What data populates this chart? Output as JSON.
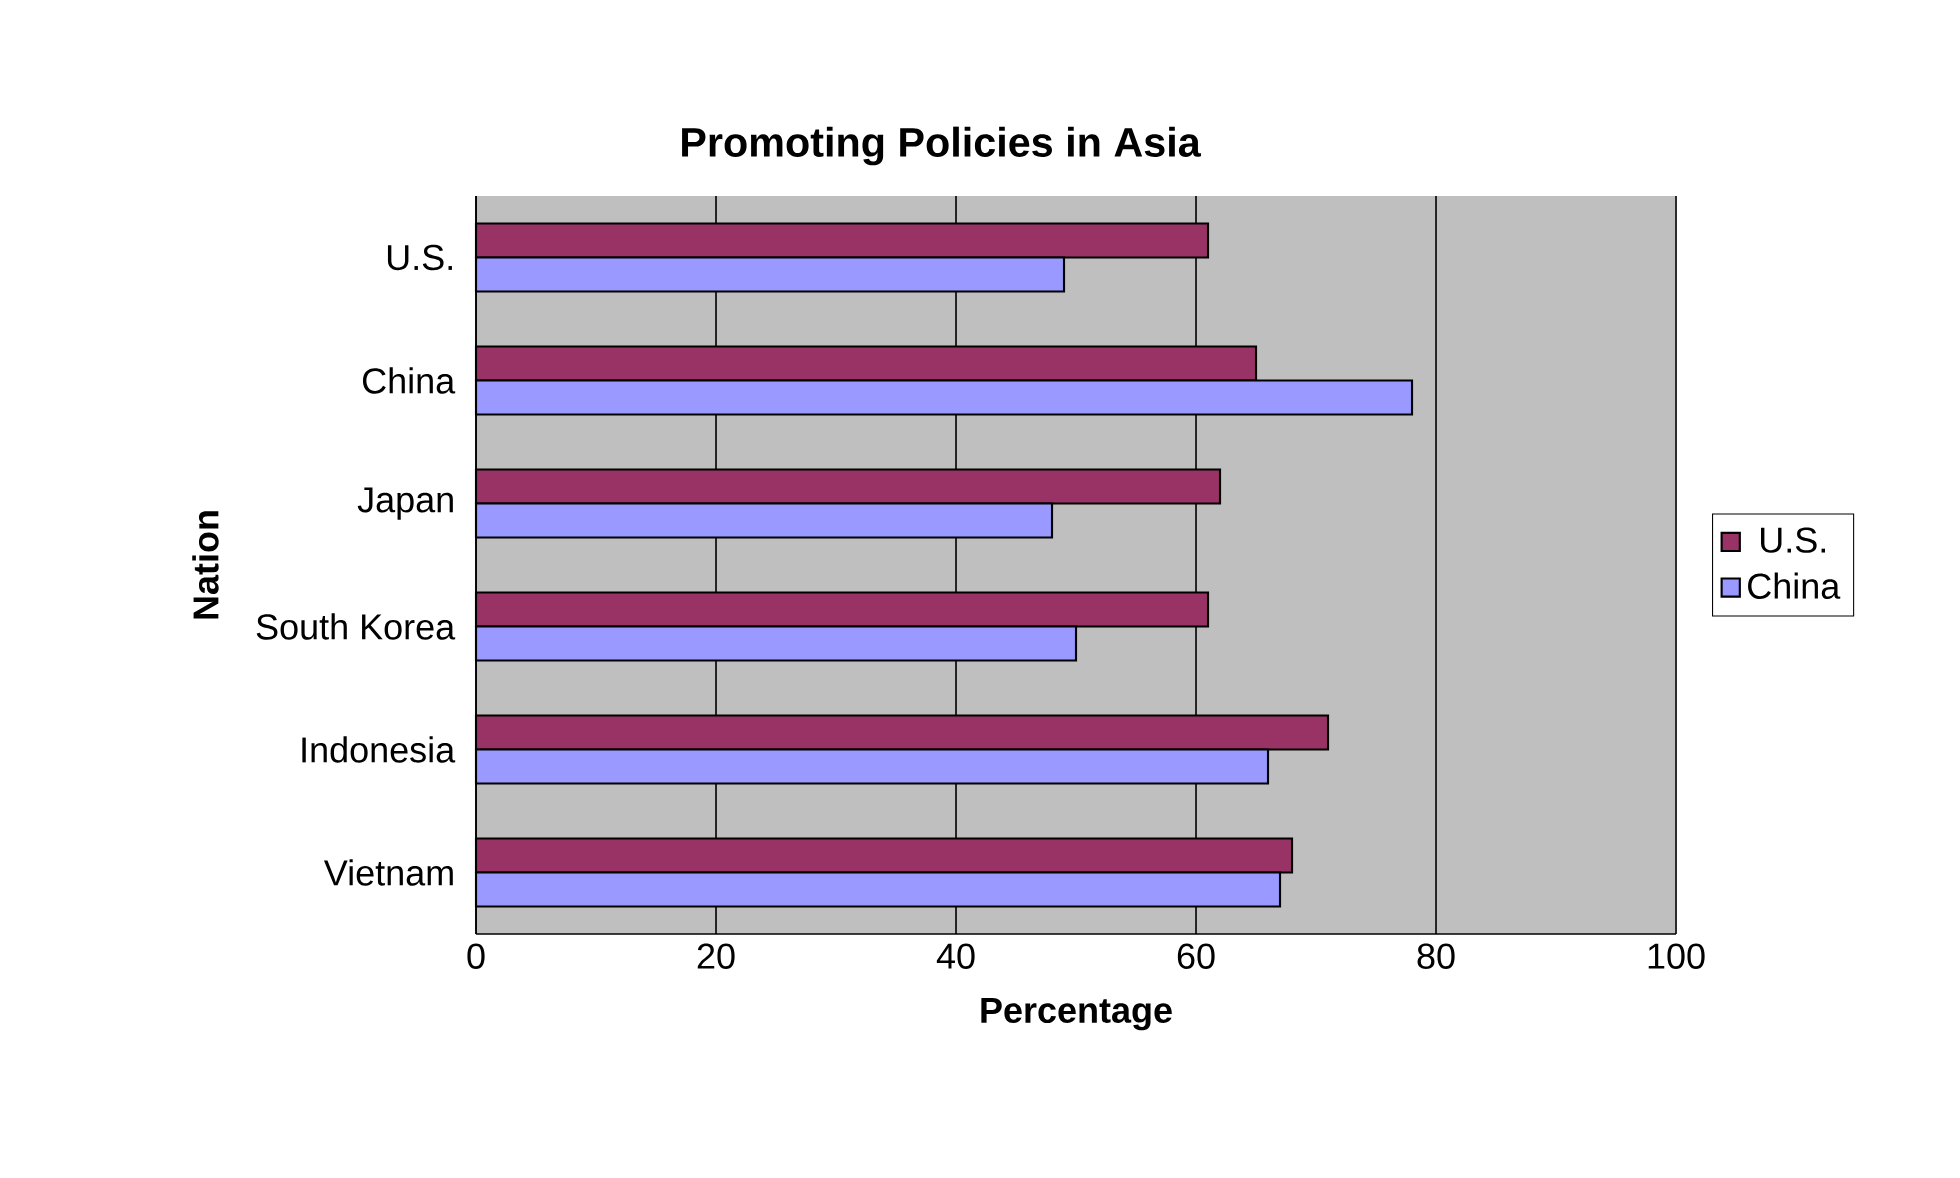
{
  "chart_data": {
    "type": "bar",
    "orientation": "horizontal",
    "title": "Promoting Policies in Asia",
    "xlabel": "Percentage",
    "ylabel": "Nation",
    "categories": [
      "U.S.",
      "China",
      "Japan",
      "South Korea",
      "Indonesia",
      "Vietnam"
    ],
    "series": [
      {
        "name": "U.S.",
        "color": "#993366",
        "values": [
          61,
          65,
          62,
          61,
          71,
          68
        ]
      },
      {
        "name": "China",
        "color": "#9999ff",
        "values": [
          49,
          78,
          48,
          50,
          66,
          67
        ]
      }
    ],
    "xlim": [
      0,
      100
    ],
    "xticks": [
      0,
      20,
      40,
      60,
      80,
      100
    ],
    "grid": "x",
    "legend": "right"
  }
}
